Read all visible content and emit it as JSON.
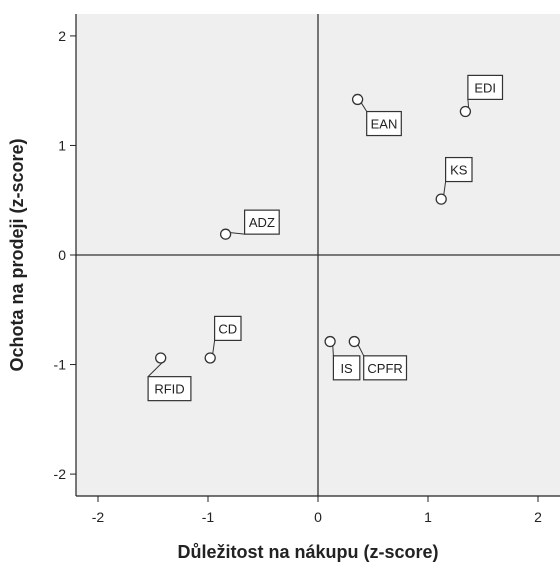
{
  "chart_data": {
    "type": "scatter",
    "title": "",
    "xlabel": "Důležitost na nákupu (z-score)",
    "ylabel": "Ochota na prodeji (z-score)",
    "xlim": [
      -2.2,
      2.2
    ],
    "ylim": [
      -2.2,
      2.2
    ],
    "x_ticks": [
      -2,
      -1,
      0,
      1,
      2
    ],
    "y_ticks": [
      -2,
      -1,
      0,
      1,
      2
    ],
    "x_tick_labels": [
      "-2",
      "-1",
      "0",
      "1",
      "2"
    ],
    "y_tick_labels": [
      "-2",
      "-1",
      "0",
      "1",
      "2"
    ],
    "grid": false,
    "reference_lines": {
      "x": 0,
      "y": 0
    },
    "points": [
      {
        "label": "EDI",
        "x": 1.34,
        "y": 1.31,
        "label_dx": 0.18,
        "label_dy": 0.22
      },
      {
        "label": "EAN",
        "x": 0.36,
        "y": 1.42,
        "label_dx": 0.24,
        "label_dy": -0.22
      },
      {
        "label": "KS",
        "x": 1.12,
        "y": 0.51,
        "label_dx": 0.16,
        "label_dy": 0.27
      },
      {
        "label": "ADZ",
        "x": -0.84,
        "y": 0.19,
        "label_dx": 0.33,
        "label_dy": 0.11
      },
      {
        "label": "CD",
        "x": -0.98,
        "y": -0.94,
        "label_dx": 0.16,
        "label_dy": 0.27
      },
      {
        "label": "RFID",
        "x": -1.43,
        "y": -0.94,
        "label_dx": 0.08,
        "label_dy": -0.28
      },
      {
        "label": "IS",
        "x": 0.11,
        "y": -0.79,
        "label_dx": 0.15,
        "label_dy": -0.24
      },
      {
        "label": "CPFR",
        "x": 0.33,
        "y": -0.79,
        "label_dx": 0.28,
        "label_dy": -0.24
      }
    ],
    "colors": {
      "plot_background": "#efefef",
      "axis": "#222222",
      "reference_line": "#333333",
      "marker_fill": "#ffffff",
      "marker_stroke": "#333333",
      "label_box_fill": "#ffffff",
      "label_box_stroke": "#333333"
    }
  }
}
